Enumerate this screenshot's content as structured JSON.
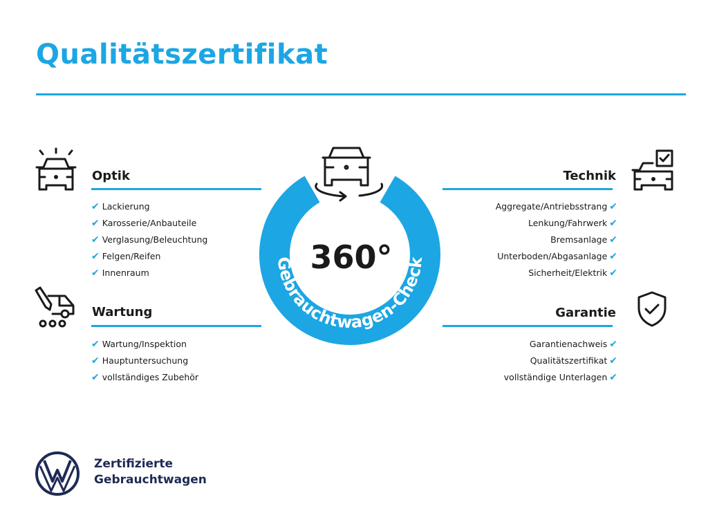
{
  "header": {
    "title": "Qualitätszertifikat"
  },
  "center": {
    "big_text": "360°",
    "ring_text": "Gebrauchtwagen-Check"
  },
  "sections": {
    "optik": {
      "title": "Optik",
      "items": [
        "Lackierung",
        "Karosserie/Anbauteile",
        "Verglasung/Beleuchtung",
        "Felgen/Reifen",
        "Innenraum"
      ]
    },
    "wartung": {
      "title": "Wartung",
      "items": [
        "Wartung/Inspektion",
        "Hauptuntersuchung",
        "vollständiges Zubehör"
      ]
    },
    "technik": {
      "title": "Technik",
      "items": [
        "Aggregate/Antriebsstrang",
        "Lenkung/Fahrwerk",
        "Bremsanlage",
        "Unterboden/Abgasanlage",
        "Sicherheit/Elektrik"
      ]
    },
    "garantie": {
      "title": "Garantie",
      "items": [
        "Garantienachweis",
        "Qualitätszertifikat",
        "vollständige Unterlagen"
      ]
    }
  },
  "check_glyph": "✔",
  "footer": {
    "line1": "Zertifizierte",
    "line2": "Gebrauchtwagen"
  },
  "colors": {
    "accent": "#1ca6e3",
    "brand": "#1e2a55"
  }
}
